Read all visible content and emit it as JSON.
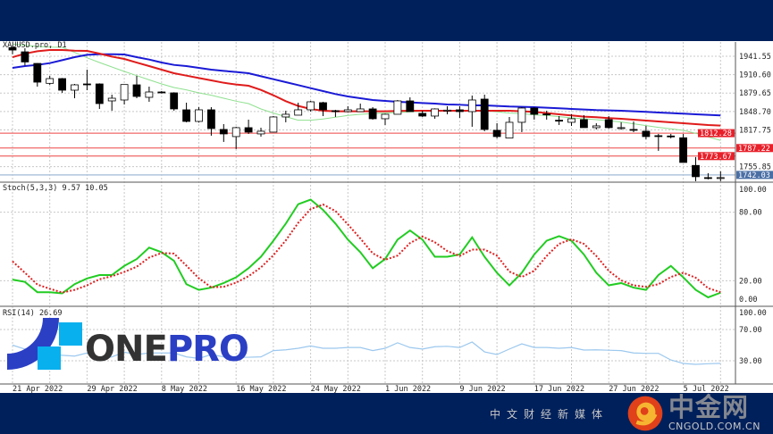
{
  "chart_title": "XAUUSD.pro, D1",
  "colors": {
    "frame": "#00205b",
    "ma_slow": "#1a1ad6",
    "ma_mid": "#e01b1b",
    "ma_fast": "#8fe08f",
    "stoch_main": "#22cc22",
    "stoch_signal": "#e02020",
    "rsi": "#9cc8ee",
    "level_line": "#ee4444",
    "price_line": "#4a6fa5"
  },
  "chart_data": {
    "type": "candlestick",
    "title": "XAUUSD.pro, D1",
    "price_axis": {
      "ticks": [
        "1941.55",
        "1910.60",
        "1879.65",
        "1848.70",
        "1817.75",
        "1755.85"
      ],
      "range": [
        1731,
        1966
      ]
    },
    "x_ticks": [
      {
        "candle": 0,
        "label": "21 Apr 2022"
      },
      {
        "candle": 6,
        "label": "29 Apr 2022"
      },
      {
        "candle": 12,
        "label": "8 May 2022"
      },
      {
        "candle": 18,
        "label": "16 May 2022"
      },
      {
        "candle": 24,
        "label": "24 May 2022"
      },
      {
        "candle": 30,
        "label": "1 Jun 2022"
      },
      {
        "candle": 36,
        "label": "9 Jun 2022"
      },
      {
        "candle": 42,
        "label": "17 Jun 2022"
      },
      {
        "candle": 48,
        "label": "27 Jun 2022"
      },
      {
        "candle": 54,
        "label": "5 Jul 2022"
      }
    ],
    "candles": [
      [
        1956,
        1960,
        1945,
        1952
      ],
      [
        1949,
        1955,
        1926,
        1932
      ],
      [
        1929.5,
        1930,
        1890.5,
        1898
      ],
      [
        1896,
        1908.5,
        1893.5,
        1904
      ],
      [
        1904,
        1905,
        1880,
        1884.5
      ],
      [
        1884.5,
        1895,
        1871,
        1893.5
      ],
      [
        1895,
        1919,
        1884.5,
        1894
      ],
      [
        1895,
        1896,
        1853,
        1862
      ],
      [
        1866.5,
        1877,
        1850,
        1871
      ],
      [
        1868,
        1894,
        1860.5,
        1894
      ],
      [
        1893.5,
        1908.5,
        1871,
        1874
      ],
      [
        1872.5,
        1890.5,
        1865,
        1881.5
      ],
      [
        1881.5,
        1883,
        1879,
        1880.5
      ],
      [
        1880,
        1881,
        1850,
        1853
      ],
      [
        1851.5,
        1863.5,
        1830.5,
        1832
      ],
      [
        1832,
        1856,
        1830,
        1851.5
      ],
      [
        1851.5,
        1856,
        1808,
        1820
      ],
      [
        1818.5,
        1827.5,
        1797.5,
        1811
      ],
      [
        1806.5,
        1823,
        1785.5,
        1821.5
      ],
      [
        1821.5,
        1835,
        1811,
        1814
      ],
      [
        1811,
        1821.5,
        1806.5,
        1815.5
      ],
      [
        1814,
        1841,
        1814,
        1839.5
      ],
      [
        1839.5,
        1850,
        1830.5,
        1844
      ],
      [
        1842.5,
        1863.5,
        1842.5,
        1851.5
      ],
      [
        1851.5,
        1866.5,
        1848.5,
        1865
      ],
      [
        1863.5,
        1865,
        1841,
        1851.5
      ],
      [
        1850,
        1851.5,
        1839.5,
        1849
      ],
      [
        1848.5,
        1857.5,
        1847,
        1851.5
      ],
      [
        1848.5,
        1862,
        1848.5,
        1853
      ],
      [
        1853,
        1856,
        1835,
        1836.5
      ],
      [
        1836.5,
        1845,
        1826,
        1844
      ],
      [
        1844,
        1868,
        1844,
        1866.5
      ],
      [
        1866.5,
        1872.5,
        1848.5,
        1848.5
      ],
      [
        1845.5,
        1850,
        1839.5,
        1841
      ],
      [
        1841,
        1854,
        1836.5,
        1853
      ],
      [
        1850,
        1857.5,
        1844,
        1851
      ],
      [
        1851.5,
        1857.5,
        1838,
        1848.5
      ],
      [
        1848.5,
        1875.5,
        1823,
        1868
      ],
      [
        1869.5,
        1877,
        1815.5,
        1818.5
      ],
      [
        1817,
        1829,
        1803.5,
        1806.5
      ],
      [
        1804,
        1839.5,
        1804,
        1830.5
      ],
      [
        1830.5,
        1856,
        1814,
        1854.5
      ],
      [
        1854.5,
        1856,
        1835,
        1844
      ],
      [
        1844.5,
        1850,
        1835,
        1844
      ],
      [
        1834,
        1841,
        1826,
        1833
      ],
      [
        1830.5,
        1844,
        1824.5,
        1836.5
      ],
      [
        1835,
        1842.5,
        1821.5,
        1821.5
      ],
      [
        1821.5,
        1829,
        1818.5,
        1824.5
      ],
      [
        1835,
        1841,
        1820,
        1821.5
      ],
      [
        1821,
        1830.5,
        1818,
        1821.5
      ],
      [
        1818.5,
        1832,
        1814,
        1818
      ],
      [
        1815.5,
        1824.5,
        1802,
        1806.5
      ],
      [
        1808,
        1811,
        1782.5,
        1807.5
      ],
      [
        1807.5,
        1811,
        1803.5,
        1807
      ],
      [
        1804.5,
        1811,
        1763,
        1763
      ],
      [
        1758,
        1772,
        1731.5,
        1739
      ],
      [
        1737.5,
        1745,
        1734.5,
        1737
      ],
      [
        1737,
        1748,
        1731.5,
        1737.5
      ]
    ],
    "ma_slow": [
      1922,
      1925,
      1927,
      1930,
      1935,
      1940,
      1944,
      1945,
      1945,
      1944.5,
      1940,
      1936,
      1931,
      1927,
      1925,
      1922,
      1919,
      1917,
      1915,
      1913,
      1908,
      1903,
      1898,
      1893,
      1888,
      1883,
      1878,
      1874,
      1871,
      1868,
      1866.5,
      1865,
      1864,
      1863,
      1862,
      1860.5,
      1860,
      1859,
      1859,
      1858,
      1857,
      1856.5,
      1856,
      1855,
      1854,
      1853,
      1852,
      1851,
      1850.5,
      1850,
      1849,
      1848,
      1847,
      1846,
      1845,
      1844,
      1843,
      1842
    ],
    "ma_mid": [
      1940,
      1946,
      1950,
      1952,
      1952,
      1951,
      1950.5,
      1946,
      1941,
      1937,
      1931,
      1925,
      1919,
      1913,
      1909,
      1905,
      1901,
      1897,
      1894,
      1892,
      1885,
      1876,
      1866,
      1858,
      1853,
      1850,
      1849,
      1849,
      1849,
      1849,
      1849,
      1849.5,
      1850,
      1850,
      1850,
      1850,
      1850,
      1850,
      1850,
      1850,
      1850,
      1849,
      1848,
      1846,
      1844,
      1842,
      1840,
      1839,
      1837.5,
      1836.5,
      1835,
      1833.5,
      1832,
      1830.5,
      1829,
      1827.5,
      1826,
      1825
    ],
    "ma_fast": [
      1962,
      1960,
      1958,
      1957,
      1956.5,
      1948,
      1939,
      1931,
      1923.5,
      1916,
      1909,
      1902,
      1895,
      1889,
      1885,
      1880,
      1876,
      1871,
      1866,
      1862,
      1853,
      1846,
      1840,
      1834,
      1834,
      1836,
      1839,
      1842,
      1844,
      1845,
      1846,
      1847,
      1848,
      1849,
      1849,
      1850,
      1850,
      1850,
      1850,
      1848,
      1846,
      1845,
      1843,
      1842,
      1840,
      1838,
      1836.5,
      1835,
      1833,
      1831,
      1828,
      1825,
      1822,
      1819.5,
      1817,
      1812,
      1806,
      1800
    ],
    "levels": [
      {
        "price": "1812.28",
        "kind": "resistance"
      },
      {
        "price": "1787.22",
        "kind": "support"
      },
      {
        "price": "1773.67",
        "kind": "support"
      }
    ],
    "current_price": "1742.03",
    "stochastic": {
      "label": "Stoch(5,3,3) 9.57 10.05",
      "ticks": [
        "100.00",
        "80.00",
        "20.00",
        "0.00"
      ],
      "main": [
        21,
        19,
        10,
        10,
        9,
        17,
        22,
        25,
        25,
        33,
        39,
        49,
        45,
        37.5,
        17,
        12,
        14,
        18,
        23,
        31,
        41,
        55,
        70,
        87,
        91,
        82,
        70,
        56,
        45,
        31,
        39,
        56,
        64,
        56,
        41,
        41,
        43,
        58,
        41,
        27,
        16,
        27,
        43,
        55,
        59,
        55,
        43,
        27,
        16,
        18,
        14,
        12,
        25,
        33,
        23,
        12,
        5.5,
        9.57
      ],
      "signal": [
        37,
        27,
        16.7,
        13,
        9.7,
        12,
        16,
        21.3,
        24,
        27.7,
        32.3,
        40.3,
        44.3,
        43.8,
        33.2,
        22.2,
        14.3,
        14.7,
        18.3,
        24,
        31.7,
        42.3,
        55.3,
        70.7,
        82.7,
        86.7,
        81,
        69.3,
        57,
        44,
        38.3,
        42,
        53,
        58.7,
        53.7,
        46,
        41.7,
        47.3,
        47.3,
        42,
        28,
        23.3,
        28.7,
        41.7,
        52.3,
        56.3,
        52.3,
        41.7,
        28.7,
        20.3,
        16,
        14.7,
        17,
        23.3,
        27,
        22.7,
        13.5,
        10.05
      ]
    },
    "rsi": {
      "label": "RSI(14) 26.69",
      "ticks": [
        "100.00",
        "70.00",
        "30.00"
      ],
      "values": [
        50,
        45,
        38,
        40,
        37,
        36,
        40,
        33,
        35,
        41,
        38,
        40,
        40,
        40,
        35,
        33,
        38,
        35,
        34.5,
        34.5,
        35,
        43,
        44,
        46,
        49,
        46,
        46,
        47,
        47,
        43,
        46,
        53,
        47,
        45,
        48,
        48.5,
        47,
        54,
        41.4,
        38,
        45,
        51.7,
        47,
        47,
        46,
        47,
        43.7,
        44,
        43.5,
        43,
        40,
        39.5,
        39.5,
        31,
        26.6,
        25.4,
        26.2,
        26.69
      ]
    }
  },
  "watermark_left": {
    "brand_a": "ONE",
    "brand_b": "PRO"
  },
  "watermark_right": {
    "name": "中金网",
    "url": "CNGOLD.COM.CN",
    "tagline": "中文财经新媒体"
  }
}
